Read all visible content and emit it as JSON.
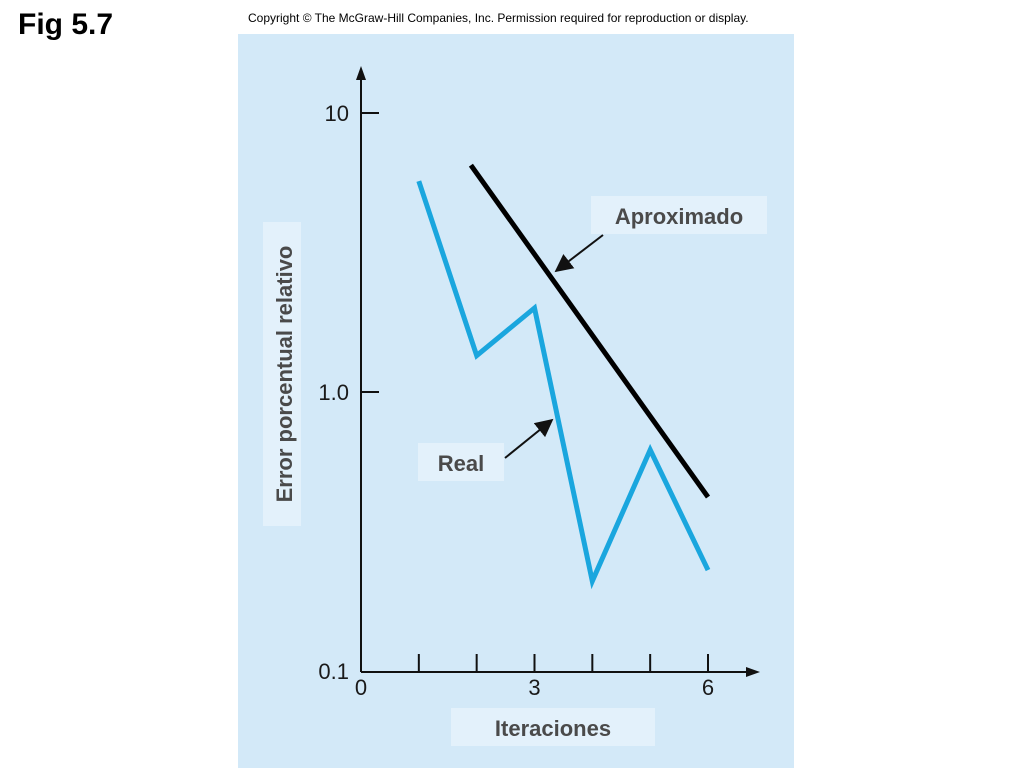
{
  "header": {
    "fig_label": "Fig 5.7",
    "copyright": "Copyright © The McGraw-Hill Companies, Inc. Permission required for reproduction or display."
  },
  "chart_data": {
    "type": "line",
    "xlabel": "Iteraciones",
    "ylabel": "Error porcentual relativo",
    "y_scale": "log",
    "ylim": [
      0.1,
      10
    ],
    "xlim": [
      0,
      6
    ],
    "x_ticks": [
      0,
      1,
      2,
      3,
      4,
      5,
      6
    ],
    "x_tick_labels": [
      "0",
      "",
      "",
      "3",
      "",
      "",
      "6"
    ],
    "y_ticks": [
      10,
      1.0,
      0.1
    ],
    "y_tick_labels": [
      "10",
      "1.0",
      "0.1"
    ],
    "series": [
      {
        "name": "Real",
        "color": "#1aa6de",
        "x": [
          1,
          2,
          3,
          4,
          5,
          6
        ],
        "y": [
          5.7,
          1.35,
          2.0,
          0.21,
          0.62,
          0.23
        ]
      },
      {
        "name": "Aproximado",
        "color": "#000000",
        "x": [
          1.9,
          6
        ],
        "y": [
          6.5,
          0.42
        ]
      }
    ],
    "annotations": [
      {
        "text": "Aproximado",
        "series": "Aproximado",
        "at_x": 3.4
      },
      {
        "text": "Real",
        "series": "Real",
        "at_x": 3.4
      }
    ],
    "grid": false,
    "legend": "none"
  }
}
